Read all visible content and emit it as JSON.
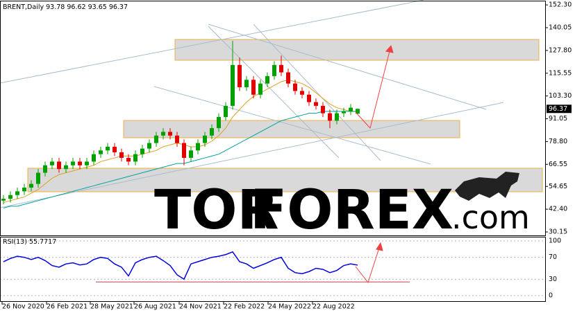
{
  "chart_data": [
    {
      "type": "candlestick",
      "title": "BRENT,Daily",
      "open": [
        47,
        48,
        50,
        52,
        54,
        56,
        62,
        66,
        68,
        64,
        66,
        68,
        66,
        68,
        72,
        74,
        76,
        73,
        70,
        68,
        72,
        75,
        78,
        82,
        84,
        82,
        78,
        70,
        74,
        78,
        82,
        86,
        92,
        98,
        120,
        108,
        112,
        104,
        110,
        114,
        120,
        116,
        110,
        106,
        104,
        100,
        98,
        94,
        90,
        94,
        95,
        93.78
      ],
      "high": [
        50,
        52,
        54,
        56,
        58,
        64,
        68,
        70,
        70,
        68,
        70,
        70,
        70,
        74,
        76,
        78,
        78,
        75,
        72,
        74,
        77,
        80,
        84,
        86,
        86,
        84,
        80,
        76,
        80,
        84,
        88,
        94,
        100,
        133,
        124,
        114,
        114,
        112,
        116,
        122,
        125,
        118,
        112,
        108,
        106,
        102,
        100,
        96,
        96,
        97,
        99,
        96.62
      ],
      "low": [
        45,
        46,
        48,
        50,
        52,
        54,
        60,
        64,
        62,
        62,
        64,
        64,
        64,
        66,
        70,
        72,
        71,
        68,
        66,
        66,
        70,
        73,
        76,
        80,
        80,
        76,
        66,
        68,
        72,
        76,
        80,
        84,
        90,
        96,
        106,
        106,
        102,
        102,
        108,
        112,
        114,
        108,
        104,
        102,
        98,
        96,
        92,
        86,
        88,
        92,
        93,
        93.65
      ],
      "close": [
        48,
        50,
        52,
        54,
        56,
        62,
        66,
        68,
        64,
        66,
        68,
        66,
        68,
        72,
        74,
        76,
        73,
        70,
        68,
        72,
        75,
        78,
        82,
        84,
        82,
        78,
        70,
        74,
        78,
        82,
        86,
        92,
        98,
        120,
        108,
        112,
        104,
        110,
        114,
        120,
        116,
        110,
        106,
        104,
        100,
        98,
        94,
        90,
        94,
        95,
        97,
        96.37
      ],
      "up_color": "#00a000",
      "down_color": "#e00000",
      "series": [
        {
          "color": "#e0a020",
          "values": [
            46,
            47,
            48,
            49,
            51,
            53,
            56,
            59,
            61,
            62,
            63,
            64,
            65,
            66,
            68,
            69,
            70,
            71,
            71,
            71,
            72,
            73,
            74,
            76,
            77,
            78,
            77,
            76,
            76,
            77,
            79,
            82,
            86,
            92,
            96,
            100,
            103,
            105,
            107,
            109,
            111,
            112,
            111,
            110,
            108,
            105,
            102,
            99,
            97,
            96,
            95,
            95
          ]
        },
        {
          "color": "#00a0a0",
          "values": [
            43,
            44,
            44,
            45,
            46,
            47,
            48,
            49,
            50,
            51,
            52,
            53,
            54,
            55,
            56,
            57,
            58,
            59,
            60,
            61,
            62,
            63,
            64,
            65,
            66,
            67,
            67,
            68,
            69,
            70,
            71,
            72,
            74,
            76,
            78,
            80,
            82,
            84,
            86,
            88,
            90,
            91,
            92,
            93,
            94,
            94,
            95,
            95,
            95,
            95,
            95,
            95
          ]
        }
      ],
      "xlim": [
        0,
        78.5
      ],
      "ylim": [
        28.3,
        154.2
      ],
      "yticks": [
        {
          "value": 152.3,
          "label": "152.30"
        },
        {
          "value": 140.05,
          "label": "140.05"
        },
        {
          "value": 127.8,
          "label": "127.80"
        },
        {
          "value": 115.55,
          "label": "115.55"
        },
        {
          "value": 103.3,
          "label": "103.30"
        },
        {
          "value": 91.05,
          "label": "91.05"
        },
        {
          "value": 78.8,
          "label": "78.80"
        },
        {
          "value": 66.55,
          "label": "66.55"
        },
        {
          "value": 54.65,
          "label": "54.65"
        },
        {
          "value": 42.4,
          "label": "42.40"
        },
        {
          "value": 30.15,
          "label": "30.15"
        }
      ],
      "watermark": [
        "TOR",
        "FOREX",
        ".com"
      ]
    },
    {
      "type": "line",
      "title": "RSI(13)",
      "color": "#0000e0",
      "ref_color": "#c04040",
      "values": [
        62,
        68,
        72,
        70,
        66,
        70,
        64,
        55,
        52,
        58,
        60,
        56,
        58,
        66,
        70,
        68,
        58,
        52,
        36,
        60,
        66,
        70,
        72,
        64,
        55,
        38,
        30,
        58,
        62,
        66,
        70,
        72,
        75,
        80,
        62,
        58,
        50,
        55,
        60,
        66,
        70,
        50,
        42,
        40,
        44,
        50,
        48,
        42,
        46,
        55,
        58,
        55.7717
      ],
      "xlim": [
        0,
        78.5
      ],
      "ylim": [
        -11.4,
        107.6
      ],
      "yticks": [
        100,
        70,
        30,
        0
      ],
      "xticks": [
        {
          "value": 0.3,
          "label": "26 Nov 2020"
        },
        {
          "value": 6.7,
          "label": "26 Feb 2021"
        },
        {
          "value": 13,
          "label": "28 May 2021"
        },
        {
          "value": 19.3,
          "label": "26 Aug 2021"
        },
        {
          "value": 25.8,
          "label": "24 Nov 2021"
        },
        {
          "value": 32.2,
          "label": "22 Feb 2022"
        },
        {
          "value": 38.6,
          "label": "24 May 2022"
        },
        {
          "value": 45,
          "label": "22 Aug 2022"
        }
      ]
    }
  ]
}
